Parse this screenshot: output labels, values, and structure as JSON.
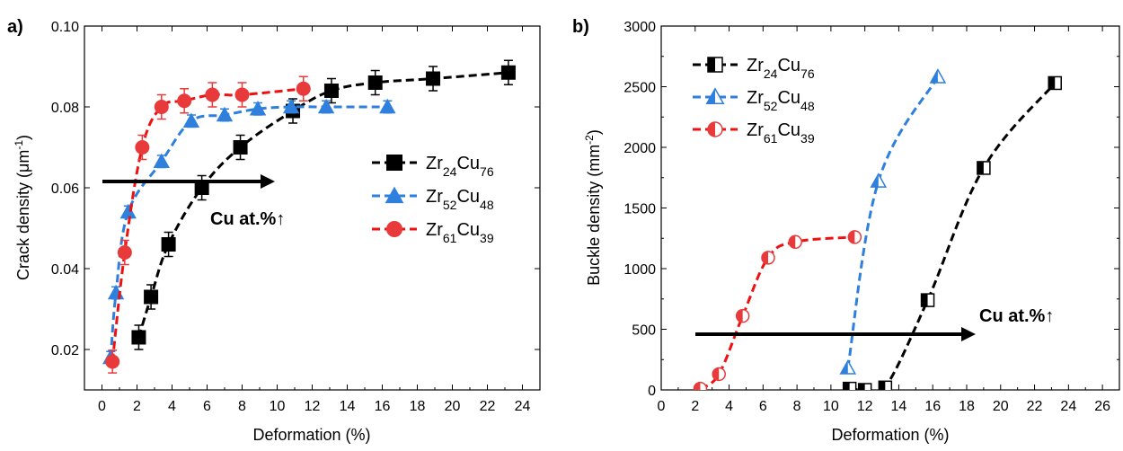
{
  "colors": {
    "black": "#000000",
    "blue": "#2f7fdd",
    "red": "#e83a3a",
    "line_black": "#000000",
    "line_blue": "#2f7fdd",
    "line_red": "#ee1111"
  },
  "chart_data": [
    {
      "panel_label": "a)",
      "type": "scatter",
      "xlabel": "Deformation (%)",
      "ylabel": "Crack density (μm⁻¹)",
      "ylabel_parts": {
        "main": "Crack density (μm",
        "sup": "-1",
        "close": ")"
      },
      "xlim": [
        -1,
        25
      ],
      "ylim": [
        0.01,
        0.1
      ],
      "xticks": [
        "0",
        "2",
        "4",
        "6",
        "8",
        "10",
        "12",
        "14",
        "16",
        "18",
        "20",
        "22",
        "24"
      ],
      "yticks": [
        "0.02",
        "0.04",
        "0.06",
        "0.08",
        "0.10"
      ],
      "legend_position": "right-center",
      "annotation": "Cu at.%↑",
      "series": [
        {
          "name": "Zr24Cu76",
          "name_parts": {
            "a": "Zr",
            "asub": "24",
            "b": "Cu",
            "bsub": "76"
          },
          "marker": "square",
          "color_key": "black",
          "points": [
            [
              2.1,
              0.023
            ],
            [
              2.8,
              0.033
            ],
            [
              3.8,
              0.046
            ],
            [
              5.7,
              0.06
            ],
            [
              7.9,
              0.07
            ],
            [
              10.9,
              0.079
            ],
            [
              13.1,
              0.084
            ],
            [
              15.6,
              0.086
            ],
            [
              18.9,
              0.087
            ],
            [
              23.2,
              0.0885
            ]
          ],
          "errors": [
            0.003,
            0.003,
            0.003,
            0.003,
            0.003,
            0.003,
            0.003,
            0.003,
            0.003,
            0.003
          ]
        },
        {
          "name": "Zr52Cu48",
          "name_parts": {
            "a": "Zr",
            "asub": "52",
            "b": "Cu",
            "bsub": "48"
          },
          "marker": "triangle",
          "color_key": "blue",
          "points": [
            [
              0.5,
              0.018
            ],
            [
              0.8,
              0.034
            ],
            [
              1.5,
              0.054
            ],
            [
              3.4,
              0.0665
            ],
            [
              5.1,
              0.0765
            ],
            [
              7.0,
              0.078
            ],
            [
              8.9,
              0.0795
            ],
            [
              10.8,
              0.08
            ],
            [
              12.8,
              0.08
            ],
            [
              16.3,
              0.08
            ]
          ],
          "errors": [
            0.0015,
            0.0015,
            0.0015,
            0.0015,
            0.0015,
            0.0015,
            0.0015,
            0.0015,
            0.0015,
            0.0015
          ]
        },
        {
          "name": "Zr61Cu39",
          "name_parts": {
            "a": "Zr",
            "asub": "61",
            "b": "Cu",
            "bsub": "39"
          },
          "marker": "circle",
          "color_key": "red",
          "points": [
            [
              0.6,
              0.017
            ],
            [
              1.3,
              0.044
            ],
            [
              2.3,
              0.07
            ],
            [
              3.4,
              0.08
            ],
            [
              4.7,
              0.0815
            ],
            [
              6.3,
              0.083
            ],
            [
              8.0,
              0.083
            ],
            [
              11.5,
              0.0845
            ]
          ],
          "errors": [
            0.0028,
            0.003,
            0.003,
            0.003,
            0.003,
            0.003,
            0.003,
            0.003
          ]
        }
      ]
    },
    {
      "panel_label": "b)",
      "type": "scatter",
      "xlabel": "Deformation (%)",
      "ylabel": "Buckle density (mm⁻²)",
      "ylabel_parts": {
        "main": "Buckle density (mm",
        "sup": "-2",
        "close": ")"
      },
      "xlim": [
        0,
        27
      ],
      "ylim": [
        0,
        3000
      ],
      "xticks": [
        "0",
        "2",
        "4",
        "6",
        "8",
        "10",
        "12",
        "14",
        "16",
        "18",
        "20",
        "22",
        "24",
        "26"
      ],
      "yticks": [
        "0",
        "500",
        "1000",
        "1500",
        "2000",
        "2500",
        "3000"
      ],
      "legend_position": "top-left",
      "annotation": "Cu at.%↑",
      "series": [
        {
          "name": "Zr24Cu76",
          "name_parts": {
            "a": "Zr",
            "asub": "24",
            "b": "Cu",
            "bsub": "76"
          },
          "marker": "half-square",
          "color_key": "black",
          "points": [
            [
              11.1,
              10
            ],
            [
              12.0,
              0
            ],
            [
              13.2,
              20
            ],
            [
              15.7,
              740
            ],
            [
              19.0,
              1830
            ],
            [
              23.2,
              2530
            ]
          ]
        },
        {
          "name": "Zr52Cu48",
          "name_parts": {
            "a": "Zr",
            "asub": "52",
            "b": "Cu",
            "bsub": "48"
          },
          "marker": "half-triangle",
          "color_key": "blue",
          "points": [
            [
              11.0,
              180
            ],
            [
              12.8,
              1720
            ],
            [
              16.3,
              2580
            ]
          ]
        },
        {
          "name": "Zr61Cu39",
          "name_parts": {
            "a": "Zr",
            "asub": "61",
            "b": "Cu",
            "bsub": "39"
          },
          "marker": "half-circle",
          "color_key": "red",
          "points": [
            [
              2.3,
              10
            ],
            [
              3.4,
              130
            ],
            [
              4.8,
              610
            ],
            [
              6.3,
              1090
            ],
            [
              7.9,
              1220
            ],
            [
              11.4,
              1260
            ]
          ]
        }
      ]
    }
  ]
}
